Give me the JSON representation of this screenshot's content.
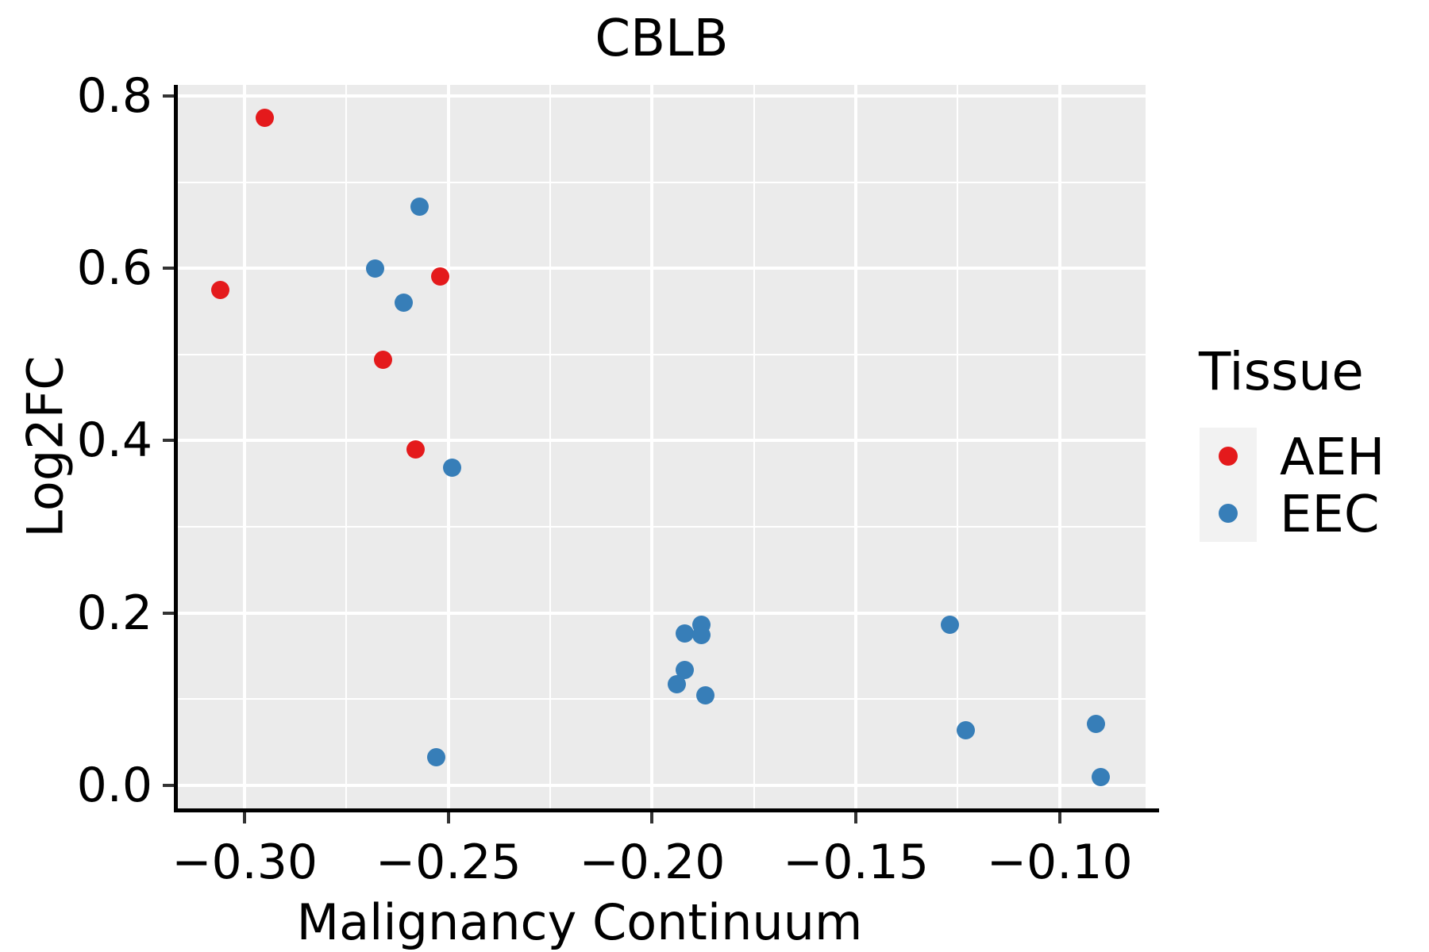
{
  "chart_data": {
    "type": "scatter",
    "title": "CBLB",
    "xlabel": "Malignancy Continuum",
    "ylabel": "Log2FC",
    "xlim": [
      -0.3164,
      -0.0789
    ],
    "ylim": [
      -0.027,
      0.813
    ],
    "x_ticks": [
      -0.3,
      -0.25,
      -0.2,
      -0.15,
      -0.1
    ],
    "x_tick_labels": [
      "−0.30",
      "−0.25",
      "−0.20",
      "−0.15",
      "−0.10"
    ],
    "y_ticks": [
      0.0,
      0.2,
      0.4,
      0.6,
      0.8
    ],
    "y_tick_labels": [
      "0.0",
      "0.2",
      "0.4",
      "0.6",
      "0.8"
    ],
    "grid": {
      "major": true,
      "minor": true,
      "color": "#ffffff"
    },
    "panel_background": "#EBEBEB",
    "legend": {
      "title": "Tissue",
      "position": "right",
      "key_background": "#F2F2F2",
      "entries": [
        {
          "label": "AEH",
          "color": "#E41A1C"
        },
        {
          "label": "EEC",
          "color": "#377EB8"
        }
      ]
    },
    "series": [
      {
        "name": "AEH",
        "color": "#E41A1C",
        "points": [
          [
            -0.295,
            0.775
          ],
          [
            -0.306,
            0.575
          ],
          [
            -0.266,
            0.494
          ],
          [
            -0.258,
            0.39
          ],
          [
            -0.252,
            0.591
          ]
        ]
      },
      {
        "name": "EEC",
        "color": "#377EB8",
        "points": [
          [
            -0.257,
            0.672
          ],
          [
            -0.268,
            0.6
          ],
          [
            -0.261,
            0.56
          ],
          [
            -0.249,
            0.369
          ],
          [
            -0.253,
            0.032
          ],
          [
            -0.188,
            0.186
          ],
          [
            -0.192,
            0.176
          ],
          [
            -0.188,
            0.174
          ],
          [
            -0.192,
            0.134
          ],
          [
            -0.194,
            0.117
          ],
          [
            -0.187,
            0.104
          ],
          [
            -0.127,
            0.186
          ],
          [
            -0.123,
            0.064
          ],
          [
            -0.091,
            0.071
          ],
          [
            -0.09,
            0.009
          ]
        ]
      }
    ]
  }
}
